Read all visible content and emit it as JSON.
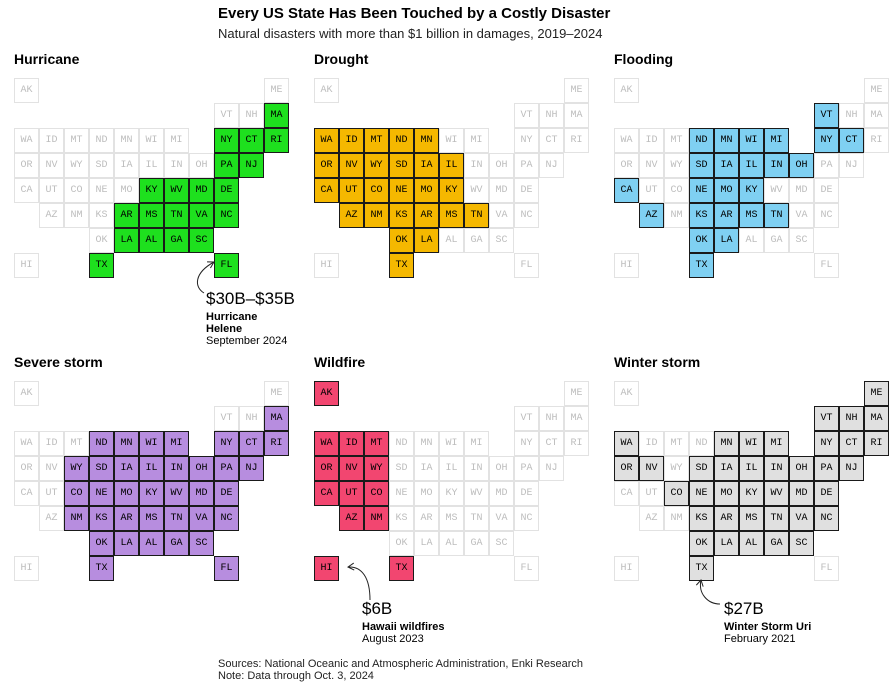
{
  "header": {
    "title": "Every US State Has Been Touched by a Costly Disaster",
    "subtitle": "Natural disasters with more than $1 billion in damages, 2019–2024"
  },
  "footer": {
    "sources": "Sources: National Oceanic and Atmospheric Administration, Enki Research",
    "note": "Note: Data through Oct. 3, 2024"
  },
  "chart_data": {
    "type": "tile-grid-map",
    "states_order": [
      "AK",
      "ME",
      "VT",
      "NH",
      "MA",
      "WA",
      "ID",
      "MT",
      "ND",
      "MN",
      "WI",
      "MI",
      "NY",
      "CT",
      "RI",
      "OR",
      "NV",
      "WY",
      "SD",
      "IA",
      "IL",
      "IN",
      "OH",
      "PA",
      "NJ",
      "CA",
      "UT",
      "CO",
      "NE",
      "MO",
      "KY",
      "WV",
      "MD",
      "DE",
      "AZ",
      "NM",
      "KS",
      "AR",
      "MS",
      "TN",
      "VA",
      "NC",
      "OK",
      "LA",
      "AL",
      "GA",
      "SC",
      "HI",
      "TX",
      "FL"
    ],
    "panels": [
      {
        "name": "Hurricane",
        "color": "#1ee01e",
        "states": [
          "MA",
          "NY",
          "CT",
          "RI",
          "PA",
          "NJ",
          "KY",
          "WV",
          "MD",
          "DE",
          "AR",
          "MS",
          "TN",
          "VA",
          "NC",
          "LA",
          "AL",
          "GA",
          "SC",
          "TX",
          "FL"
        ],
        "callout": {
          "target": "FL",
          "amount": "$30B–$35B",
          "event": "Hurricane Helene",
          "date": "September 2024"
        }
      },
      {
        "name": "Drought",
        "color": "#f5b800",
        "states": [
          "WA",
          "ID",
          "MT",
          "ND",
          "MN",
          "OR",
          "NV",
          "WY",
          "SD",
          "IA",
          "IL",
          "CA",
          "UT",
          "CO",
          "NE",
          "MO",
          "KY",
          "AZ",
          "NM",
          "KS",
          "AR",
          "MS",
          "TN",
          "OK",
          "LA",
          "TX"
        ]
      },
      {
        "name": "Flooding",
        "color": "#7fd0f2",
        "states": [
          "VT",
          "ND",
          "MN",
          "WI",
          "MI",
          "NY",
          "CT",
          "SD",
          "IA",
          "IL",
          "IN",
          "OH",
          "CA",
          "NE",
          "MO",
          "KY",
          "AZ",
          "KS",
          "AR",
          "MS",
          "TN",
          "OK",
          "LA",
          "TX"
        ]
      },
      {
        "name": "Severe storm",
        "color": "#b78ddf",
        "states": [
          "MA",
          "ND",
          "MN",
          "WI",
          "MI",
          "NY",
          "CT",
          "RI",
          "WY",
          "SD",
          "IA",
          "IL",
          "IN",
          "OH",
          "PA",
          "NJ",
          "CO",
          "NE",
          "MO",
          "KY",
          "WV",
          "MD",
          "DE",
          "NM",
          "KS",
          "AR",
          "MS",
          "TN",
          "VA",
          "NC",
          "OK",
          "LA",
          "AL",
          "GA",
          "SC",
          "TX",
          "FL"
        ]
      },
      {
        "name": "Wildfire",
        "color": "#f24670",
        "states": [
          "AK",
          "WA",
          "ID",
          "MT",
          "OR",
          "NV",
          "WY",
          "CA",
          "UT",
          "CO",
          "AZ",
          "NM",
          "HI",
          "TX"
        ],
        "callout": {
          "target": "HI",
          "amount": "$6B",
          "event": "Hawaii wildfires",
          "date": "August 2023"
        }
      },
      {
        "name": "Winter storm",
        "color": "#e0e0e0",
        "states": [
          "ME",
          "VT",
          "NH",
          "MA",
          "WA",
          "MN",
          "WI",
          "MI",
          "NY",
          "CT",
          "RI",
          "OR",
          "NV",
          "SD",
          "IA",
          "IL",
          "IN",
          "OH",
          "PA",
          "NJ",
          "CO",
          "NE",
          "MO",
          "KY",
          "WV",
          "MD",
          "DE",
          "KS",
          "AR",
          "MS",
          "TN",
          "VA",
          "NC",
          "OK",
          "LA",
          "AL",
          "GA",
          "SC",
          "TX"
        ],
        "callout": {
          "target": "TX",
          "amount": "$27B",
          "event": "Winter Storm Uri",
          "date": "February 2021"
        }
      }
    ]
  }
}
